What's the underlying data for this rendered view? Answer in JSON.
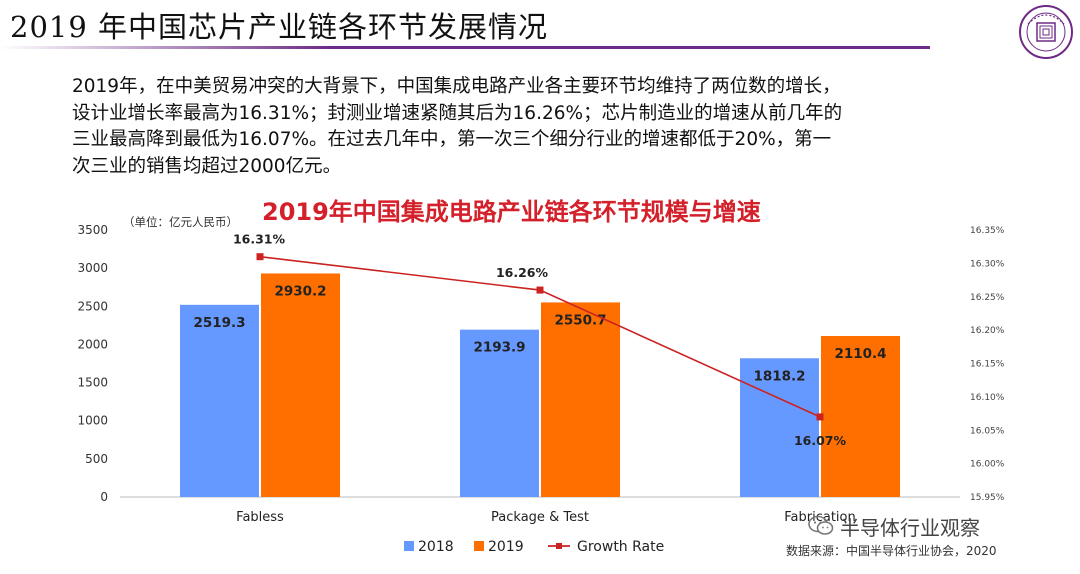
{
  "slide": {
    "title": "2019 年中国芯片产业链各环节发展情况",
    "accent_color": "#6d2b86"
  },
  "paragraph": {
    "lines": [
      "2019年，在中美贸易冲突的大背景下，中国集成电路产业各主要环节均维持了两位数的增长，",
      "设计业增长率最高为16.31%；封测业增速紧随其后为16.26%；芯片制造业的增速从前几年的",
      "三业最高降到最低为16.07%。在过去几年中，第一次三个细分行业的增速都低于20%，第一",
      "次三业的销售均超过2000亿元。"
    ]
  },
  "chart_title": "2019年中国集成电路产业链各环节规模与增速",
  "unit_label": "（单位：亿元人民币）",
  "source": "数据来源：中国半导体行业协会，2020",
  "watermark": {
    "text": "半导体行业观察",
    "icon": "wechat-icon"
  },
  "logo": {
    "icon": "university-seal-icon"
  },
  "chart_data": {
    "type": "bar",
    "categories": [
      "Fabless",
      "Package & Test",
      "Fabrication"
    ],
    "series": [
      {
        "name": "2018",
        "type": "bar",
        "axis": "left",
        "color": "#6699ff",
        "values": [
          2519.3,
          2193.9,
          1818.2
        ]
      },
      {
        "name": "2019",
        "type": "bar",
        "axis": "left",
        "color": "#ff6f00",
        "values": [
          2930.2,
          2550.7,
          2110.4
        ]
      },
      {
        "name": "Growth Rate",
        "type": "line",
        "axis": "right",
        "color": "#cc2222",
        "values": [
          16.31,
          16.26,
          16.07
        ],
        "labels": [
          "16.31%",
          "16.26%",
          "16.07%"
        ]
      }
    ],
    "ylim_left": [
      0,
      3500
    ],
    "yticks_left": [
      "0",
      "500",
      "1000",
      "1500",
      "2000",
      "2500",
      "3000",
      "3500"
    ],
    "ylim_right": [
      15.95,
      16.35
    ],
    "yticks_right": [
      "15.95%",
      "16.00%",
      "16.05%",
      "16.10%",
      "16.15%",
      "16.20%",
      "16.25%",
      "16.30%",
      "16.35%"
    ],
    "grid": false,
    "legend": "bottom"
  }
}
